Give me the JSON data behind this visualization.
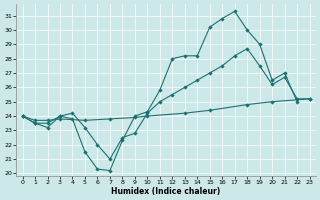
{
  "bg_color": "#cde8e8",
  "line_color": "#1e7070",
  "xlabel": "Humidex (Indice chaleur)",
  "xlim": [
    -0.5,
    23.5
  ],
  "ylim": [
    19.8,
    31.8
  ],
  "xticks": [
    0,
    1,
    2,
    3,
    4,
    5,
    6,
    7,
    8,
    9,
    10,
    11,
    12,
    13,
    14,
    15,
    16,
    17,
    18,
    19,
    20,
    21,
    22,
    23
  ],
  "yticks": [
    20,
    21,
    22,
    23,
    24,
    25,
    26,
    27,
    28,
    29,
    30,
    31
  ],
  "line1": {
    "x": [
      0,
      1,
      2,
      3,
      4,
      5,
      6,
      7,
      8,
      9,
      10,
      11,
      12,
      13,
      14,
      15,
      16,
      17,
      18,
      19,
      20,
      21,
      22
    ],
    "y": [
      24,
      23.5,
      23.2,
      24.0,
      23.8,
      21.5,
      20.3,
      20.2,
      22.3,
      24.0,
      24.3,
      25.8,
      28.0,
      28.2,
      28.2,
      30.2,
      30.8,
      31.3,
      30.0,
      29.0,
      26.5,
      27.0,
      25.0
    ]
  },
  "line2": {
    "x": [
      0,
      1,
      2,
      3,
      4,
      5,
      6,
      7,
      8,
      9,
      10,
      11,
      12,
      13,
      14,
      15,
      16,
      17,
      18,
      19,
      20,
      21,
      22,
      23
    ],
    "y": [
      24,
      23.5,
      23.5,
      24.0,
      24.2,
      23.2,
      22.0,
      21.0,
      22.5,
      22.8,
      24.2,
      25.0,
      25.5,
      26.0,
      26.5,
      27.0,
      27.5,
      28.2,
      28.7,
      27.5,
      26.2,
      26.7,
      25.2,
      25.2
    ]
  },
  "line3": {
    "x": [
      0,
      1,
      2,
      3,
      5,
      7,
      9,
      10,
      13,
      15,
      18,
      20,
      23
    ],
    "y": [
      24,
      23.7,
      23.7,
      23.8,
      23.7,
      23.8,
      23.9,
      24.0,
      24.2,
      24.4,
      24.8,
      25.0,
      25.2
    ]
  }
}
